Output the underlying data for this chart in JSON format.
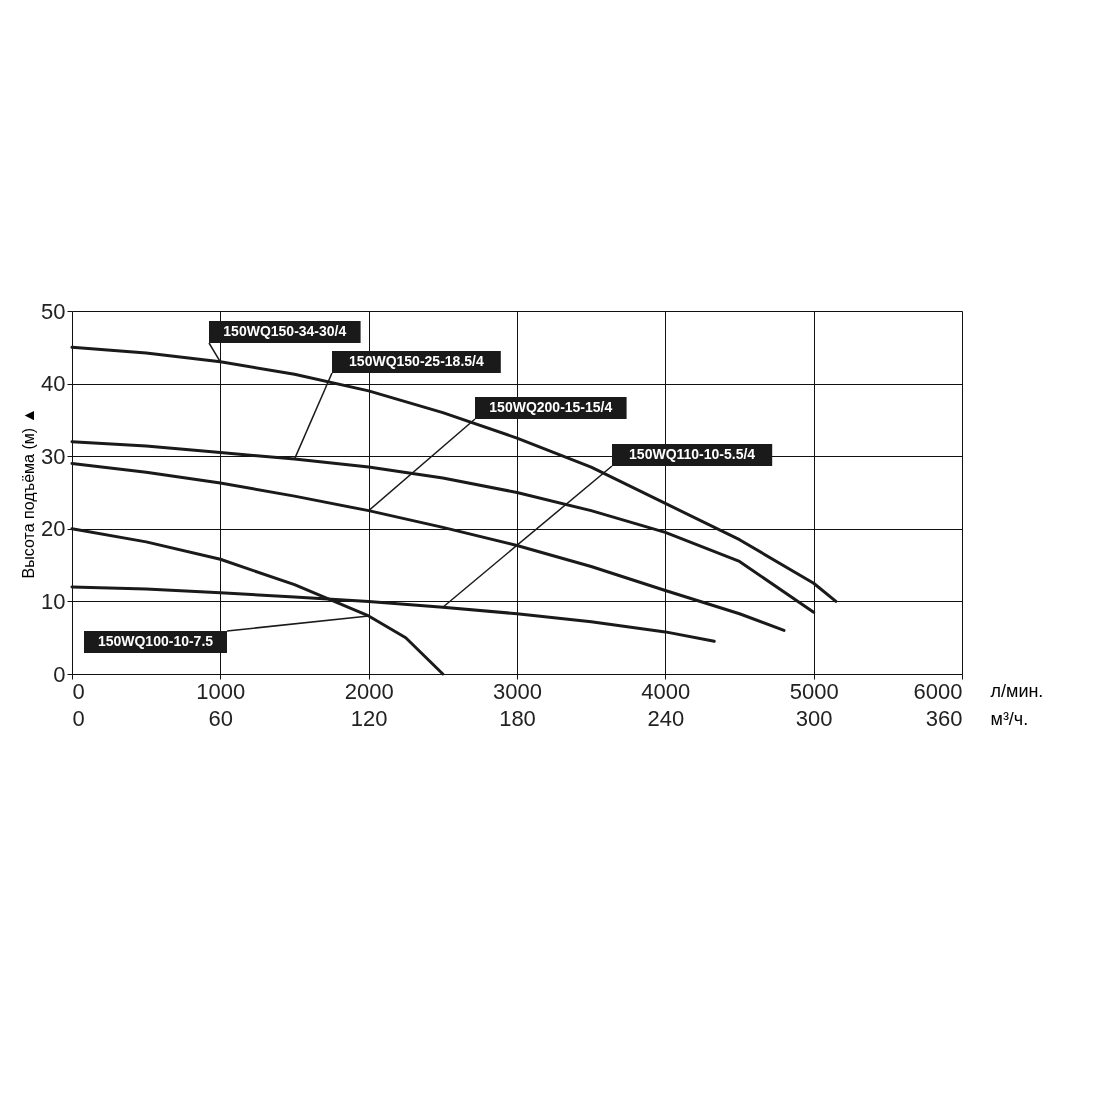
{
  "chart_data": {
    "type": "line",
    "xlabel": "л/мин.",
    "x2label": "м³/ч.",
    "ylabel": "Высота подъёма (м) ▲",
    "xlim": [
      0,
      6000
    ],
    "xticks": [
      0,
      1000,
      2000,
      3000,
      4000,
      5000,
      6000
    ],
    "x2lim": [
      0,
      360
    ],
    "x2ticks": [
      0,
      60,
      120,
      180,
      240,
      300,
      360
    ],
    "ylim": [
      0,
      50
    ],
    "yticks": [
      0,
      10,
      20,
      30,
      40,
      50
    ],
    "grid": true,
    "series": [
      {
        "name": "150WQ150-34-30/4",
        "color": "#1a1a1a",
        "x": [
          0,
          500,
          1000,
          1500,
          2000,
          2500,
          3000,
          3500,
          4000,
          4500,
          5000,
          5150
        ],
        "values": [
          45,
          44.2,
          43,
          41.3,
          39,
          36,
          32.5,
          28.5,
          23.5,
          18.5,
          12.5,
          10
        ]
      },
      {
        "name": "150WQ150-25-18.5/4",
        "color": "#1a1a1a",
        "x": [
          0,
          500,
          1000,
          1500,
          2000,
          2500,
          3000,
          3500,
          4000,
          4500,
          5000
        ],
        "values": [
          32,
          31.4,
          30.5,
          29.6,
          28.5,
          27,
          25,
          22.5,
          19.5,
          15.5,
          8.5
        ]
      },
      {
        "name": "150WQ200-15-15/4",
        "color": "#1a1a1a",
        "x": [
          0,
          500,
          1000,
          1500,
          2000,
          2500,
          3000,
          3500,
          4000,
          4500,
          4800
        ],
        "values": [
          29,
          27.8,
          26.3,
          24.5,
          22.5,
          20.2,
          17.7,
          14.8,
          11.5,
          8.3,
          6
        ]
      },
      {
        "name": "150WQ110-10-5.5/4",
        "color": "#1a1a1a",
        "x": [
          0,
          500,
          1000,
          1500,
          2000,
          2500,
          3000,
          3500,
          4000,
          4330
        ],
        "values": [
          12,
          11.7,
          11.2,
          10.6,
          10,
          9.2,
          8.3,
          7.2,
          5.8,
          4.5
        ]
      },
      {
        "name": "150WQ100-10-7.5",
        "color": "#1a1a1a",
        "x": [
          0,
          500,
          1000,
          1500,
          2000,
          2250,
          2500
        ],
        "values": [
          20,
          18.2,
          15.8,
          12.3,
          8,
          5,
          0
        ]
      }
    ]
  }
}
